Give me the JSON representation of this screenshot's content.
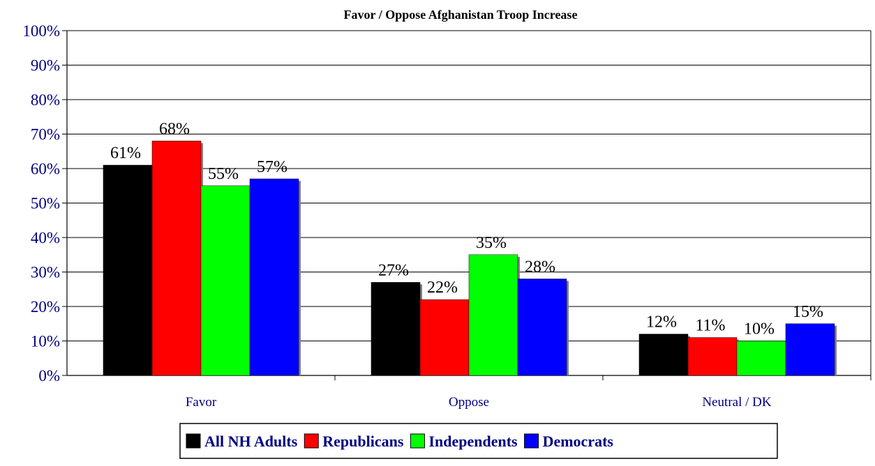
{
  "chart_data": {
    "type": "bar",
    "title": "Favor / Oppose Afghanistan Troop Increase",
    "xlabel": "",
    "ylabel": "",
    "ylim": [
      0,
      100
    ],
    "y_ticks": [
      "0%",
      "10%",
      "20%",
      "30%",
      "40%",
      "50%",
      "60%",
      "70%",
      "80%",
      "90%",
      "100%"
    ],
    "categories": [
      "Favor",
      "Oppose",
      "Neutral / DK"
    ],
    "series": [
      {
        "name": "All NH Adults",
        "color": "#000000",
        "values": [
          61,
          27,
          12
        ],
        "labels": [
          "61%",
          "27%",
          "12%"
        ]
      },
      {
        "name": "Republicans",
        "color": "#ff0000",
        "values": [
          68,
          22,
          11
        ],
        "labels": [
          "68%",
          "22%",
          "11%"
        ]
      },
      {
        "name": "Independents",
        "color": "#00ff00",
        "values": [
          55,
          35,
          10
        ],
        "labels": [
          "55%",
          "35%",
          "10%"
        ]
      },
      {
        "name": "Democrats",
        "color": "#0000ff",
        "values": [
          57,
          28,
          15
        ],
        "labels": [
          "57%",
          "28%",
          "15%"
        ]
      }
    ],
    "grid": true,
    "legend_position": "bottom"
  }
}
